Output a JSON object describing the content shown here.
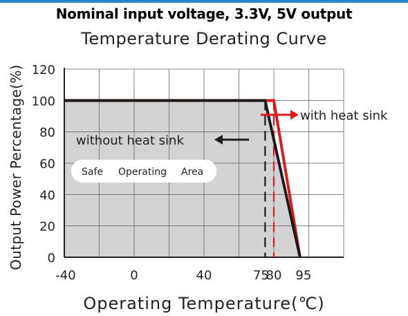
{
  "chart_data": {
    "type": "line",
    "title": "Temperature Derating Curve",
    "subtitle": "Nominal input voltage, 3.3V, 5V output",
    "xlabel": "Operating Temperature(℃)",
    "ylabel": "Output Power Percentage(%)",
    "xlim": [
      -40,
      120
    ],
    "ylim": [
      0,
      120
    ],
    "x_ticks": [
      {
        "value": -40,
        "label": "-40"
      },
      {
        "value": 0,
        "label": "0"
      },
      {
        "value": 40,
        "label": "40"
      },
      {
        "value": 75,
        "label": "75"
      },
      {
        "value": 80,
        "label": "80"
      },
      {
        "value": 95,
        "label": "95"
      }
    ],
    "y_ticks": [
      0,
      20,
      40,
      60,
      80,
      100,
      120
    ],
    "grid": true,
    "series": [
      {
        "name": "without heat sink",
        "color": "#1a1a1a",
        "x": [
          -40,
          75,
          95
        ],
        "y": [
          100,
          100,
          0
        ]
      },
      {
        "name": "with heat sink",
        "color": "#e01a1a",
        "x": [
          -40,
          80,
          95
        ],
        "y": [
          100,
          100,
          0
        ]
      }
    ],
    "region_label": {
      "words": [
        "Safe",
        "Operating",
        "Area"
      ]
    },
    "annotations": {
      "without_heat_sink": "without heat sink",
      "with_heat_sink": "with heat sink"
    },
    "colors": {
      "shade": "#d3d3d3",
      "grid": "#666666",
      "black": "#1a1a1a",
      "red": "#e01a1a",
      "accent_bar": "#2a86c8"
    }
  }
}
